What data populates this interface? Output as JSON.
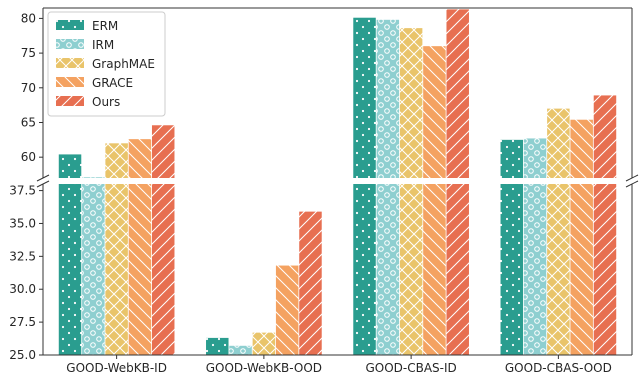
{
  "chart_data": {
    "type": "bar",
    "broken_axis": true,
    "categories": [
      "GOOD-WebKB-ID",
      "GOOD-WebKB-OOD",
      "GOOD-CBAS-ID",
      "GOOD-CBAS-OOD"
    ],
    "series": [
      {
        "name": "ERM",
        "color": "#2a9d8f",
        "pattern": "dots",
        "values": [
          60.4,
          26.3,
          80.1,
          62.5
        ]
      },
      {
        "name": "IRM",
        "color": "#8ecfd0",
        "pattern": "circles",
        "values": [
          57.1,
          25.7,
          79.8,
          62.7
        ]
      },
      {
        "name": "GraphMAE",
        "color": "#e9c46a",
        "pattern": "crosshatch",
        "values": [
          62.0,
          26.7,
          78.6,
          67.0
        ]
      },
      {
        "name": "GRACE",
        "color": "#f4a261",
        "pattern": "backslash",
        "values": [
          62.6,
          31.8,
          76.0,
          65.4
        ]
      },
      {
        "name": "Ours",
        "color": "#e76f51",
        "pattern": "slash",
        "values": [
          64.6,
          35.9,
          81.3,
          68.9
        ]
      }
    ],
    "top_axis": {
      "ylim": [
        57.0,
        81.5
      ],
      "ticks": [
        "60",
        "65",
        "70",
        "75",
        "80"
      ]
    },
    "bottom_axis": {
      "ylim": [
        25.0,
        38.0
      ],
      "ticks": [
        "25.0",
        "27.5",
        "30.0",
        "32.5",
        "35.0",
        "37.5"
      ]
    },
    "legend": {
      "placement": "top-left"
    },
    "grid": false
  }
}
